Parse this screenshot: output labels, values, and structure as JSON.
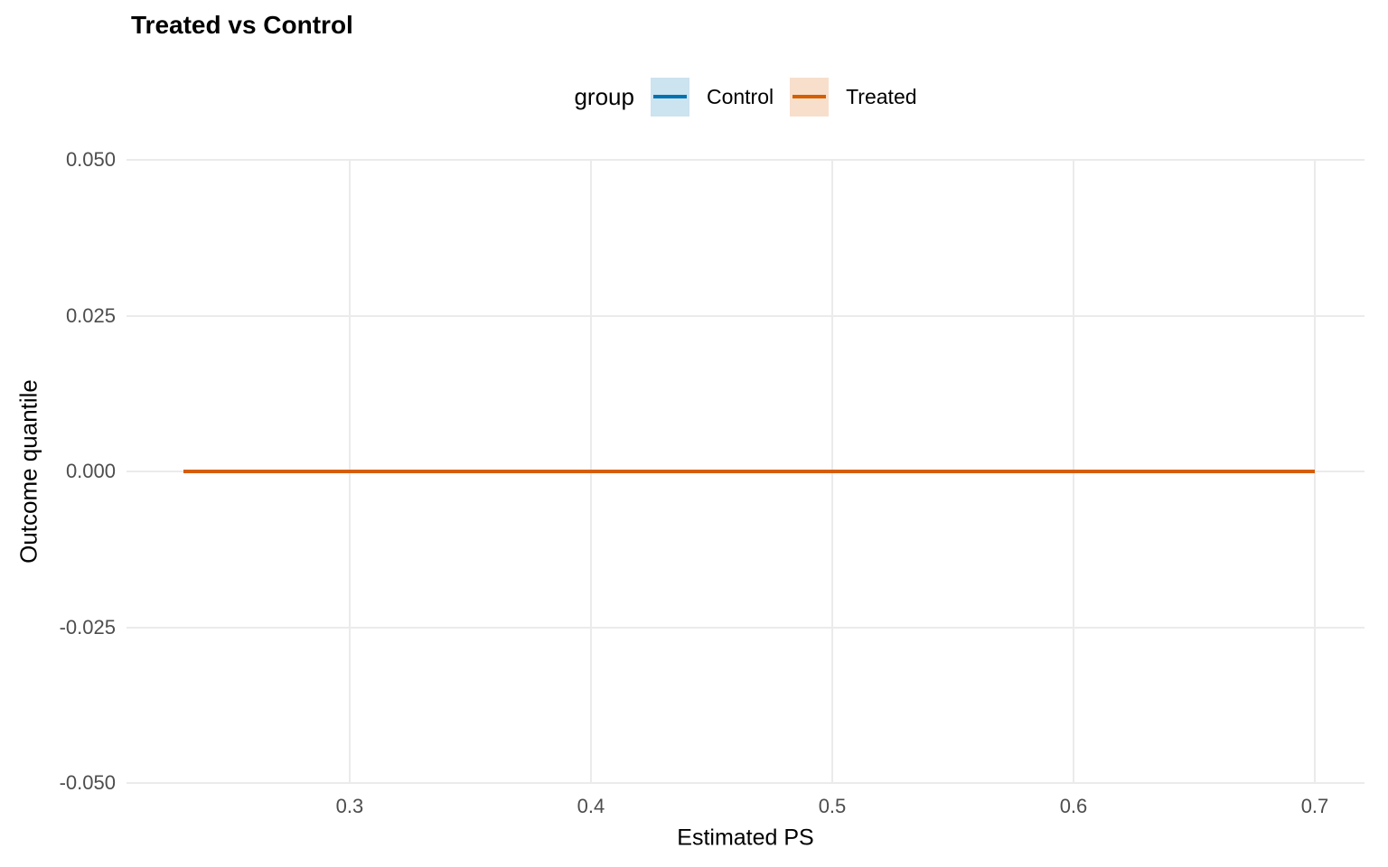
{
  "chart_data": {
    "type": "line",
    "title": "Treated vs Control",
    "xlabel": "Estimated PS",
    "ylabel": "Outcome quantile",
    "legend": {
      "title": "group",
      "position": "top",
      "entries": [
        "Control",
        "Treated"
      ]
    },
    "xlim": [
      0.2075,
      0.7206
    ],
    "ylim": [
      -0.05,
      0.05
    ],
    "x_ticks": {
      "values": [
        0.3,
        0.4,
        0.5,
        0.6,
        0.7
      ],
      "labels": [
        "0.3",
        "0.4",
        "0.5",
        "0.6",
        "0.7"
      ]
    },
    "y_ticks": {
      "values": [
        0.05,
        0.025,
        0,
        -0.025,
        -0.05
      ],
      "labels": [
        "0.050",
        "0.025",
        "0.000",
        "-0.025",
        "-0.050"
      ]
    },
    "grid": {
      "show_major": true,
      "show_minor": false,
      "color": "#EBEBEB"
    },
    "colors": {
      "background": "#FFFFFF",
      "tick_label": "#4D4D4D",
      "text": "#000000"
    },
    "series": [
      {
        "name": "Control",
        "color": "#0072B2",
        "ribbon_fill": "#CCE3F0",
        "x": [
          0.231,
          0.7
        ],
        "y": [
          0.0,
          0.0
        ]
      },
      {
        "name": "Treated",
        "color": "#D55E00",
        "ribbon_fill": "#F7DFCC",
        "x": [
          0.231,
          0.7
        ],
        "y": [
          0.0,
          0.0
        ]
      }
    ]
  }
}
